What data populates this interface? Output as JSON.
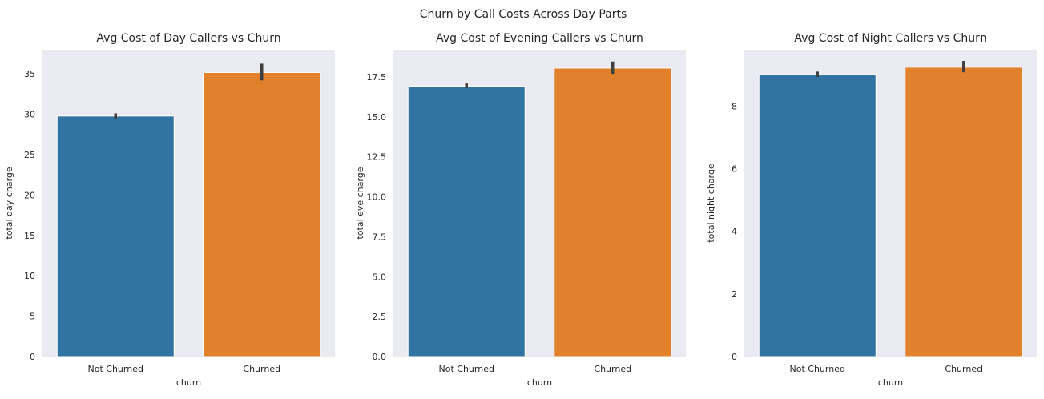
{
  "figure": {
    "suptitle": "Churn by Call Costs Across Day Parts"
  },
  "style": {
    "plot_bg": "#eaeaf2",
    "bar_colors": [
      "#3274a1",
      "#e1812c"
    ],
    "error_bar_color": "#3f3f3f"
  },
  "chart_data": [
    {
      "type": "bar",
      "title": "Avg Cost of Day Callers vs Churn",
      "xlabel": "churn",
      "ylabel": "total day charge",
      "categories": [
        "Not Churned",
        "Churned"
      ],
      "values": [
        29.78,
        35.18
      ],
      "error_low": [
        29.45,
        34.2
      ],
      "error_high": [
        30.12,
        36.27
      ],
      "ylim": [
        0,
        38
      ],
      "yticks": [
        0,
        5,
        10,
        15,
        20,
        25,
        30,
        35
      ],
      "ytick_labels": [
        "0",
        "5",
        "10",
        "15",
        "20",
        "25",
        "30",
        "35"
      ],
      "grid": false,
      "legend": "none"
    },
    {
      "type": "bar",
      "title": "Avg Cost of Evening Callers vs Churn",
      "xlabel": "churn",
      "ylabel": "total eve charge",
      "categories": [
        "Not Churned",
        "Churned"
      ],
      "values": [
        16.92,
        18.05
      ],
      "error_low": [
        16.79,
        17.69
      ],
      "error_high": [
        17.09,
        18.46
      ],
      "ylim": [
        0,
        19.2
      ],
      "yticks": [
        0,
        2.5,
        5,
        7.5,
        10,
        12.5,
        15,
        17.5
      ],
      "ytick_labels": [
        "0.0",
        "2.5",
        "5.0",
        "7.5",
        "10.0",
        "12.5",
        "15.0",
        "17.5"
      ],
      "grid": false,
      "legend": "none"
    },
    {
      "type": "bar",
      "title": "Avg Cost of Night Callers vs Churn",
      "xlabel": "churn",
      "ylabel": "total night charge",
      "categories": [
        "Not Churned",
        "Churned"
      ],
      "values": [
        9.01,
        9.24
      ],
      "error_low": [
        8.93,
        9.08
      ],
      "error_high": [
        9.1,
        9.44
      ],
      "ylim": [
        0,
        9.8
      ],
      "yticks": [
        0,
        2,
        4,
        6,
        8
      ],
      "ytick_labels": [
        "0",
        "2",
        "4",
        "6",
        "8"
      ],
      "grid": false,
      "legend": "none"
    }
  ]
}
